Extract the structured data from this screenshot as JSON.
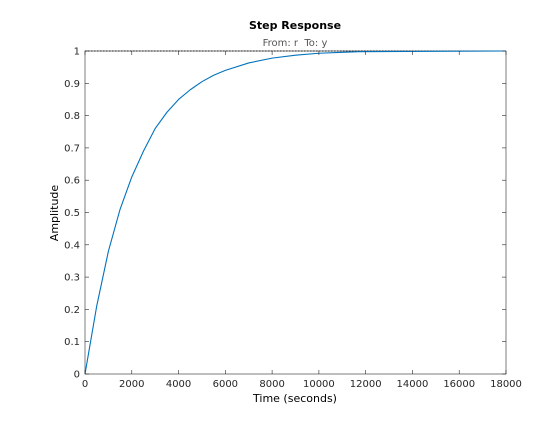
{
  "chart_data": {
    "type": "line",
    "title": "Step Response",
    "subtitle": "From: r  To: y",
    "xlabel": "Time (seconds)",
    "ylabel": "Amplitude",
    "xlim": [
      0,
      18000
    ],
    "ylim": [
      0,
      1
    ],
    "xticks": [
      0,
      2000,
      4000,
      6000,
      8000,
      10000,
      12000,
      14000,
      16000,
      18000
    ],
    "yticks": [
      0,
      0.1,
      0.2,
      0.3,
      0.4,
      0.5,
      0.6,
      0.7,
      0.8,
      0.9,
      1
    ],
    "grid": false,
    "series": [
      {
        "color": "#0072bd",
        "x": [
          0,
          500,
          1000,
          1500,
          2000,
          2500,
          3000,
          3500,
          4000,
          4500,
          5000,
          5500,
          6000,
          7000,
          8000,
          9000,
          10000,
          11000,
          11700
        ],
        "y": [
          0,
          0.21,
          0.38,
          0.51,
          0.61,
          0.69,
          0.76,
          0.81,
          0.85,
          0.88,
          0.905,
          0.925,
          0.94,
          0.963,
          0.978,
          0.987,
          0.993,
          0.996,
          0.998
        ]
      }
    ],
    "reference_line": {
      "y": 1,
      "color": "#000000"
    }
  }
}
